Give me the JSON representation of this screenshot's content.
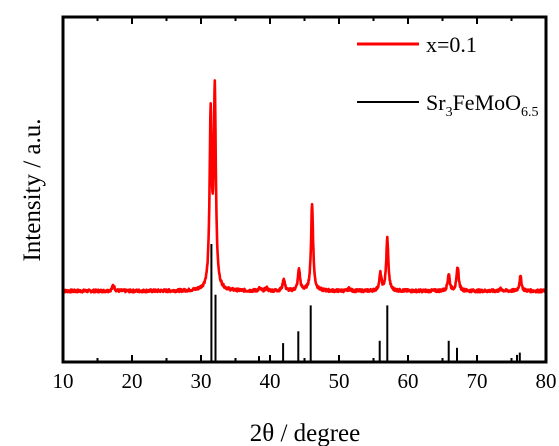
{
  "chart_data": {
    "type": "line",
    "title": "",
    "xlabel": "2θ / degree",
    "ylabel": "Intensity / a.u.",
    "xlim": [
      10,
      80
    ],
    "xticks": [
      10,
      20,
      30,
      40,
      50,
      60,
      70,
      80
    ],
    "xtick_labels": [
      "10",
      "20",
      "30",
      "40",
      "50",
      "60",
      "70",
      "80"
    ],
    "yticks_shown": false,
    "grid": false,
    "legend_placement": "top-right",
    "series": [
      {
        "name": "x=0.1",
        "color": "#ff0000",
        "type": "line",
        "baseline": 0,
        "peaks": [
          {
            "x": 17.3,
            "y": 0.025
          },
          {
            "x": 31.4,
            "y": 0.71
          },
          {
            "x": 32.0,
            "y": 0.82
          },
          {
            "x": 38.5,
            "y": 0.01
          },
          {
            "x": 39.5,
            "y": 0.012
          },
          {
            "x": 42.0,
            "y": 0.05
          },
          {
            "x": 44.2,
            "y": 0.09
          },
          {
            "x": 46.1,
            "y": 0.36
          },
          {
            "x": 51.5,
            "y": 0.01
          },
          {
            "x": 56.0,
            "y": 0.07
          },
          {
            "x": 57.0,
            "y": 0.22
          },
          {
            "x": 65.9,
            "y": 0.07
          },
          {
            "x": 67.2,
            "y": 0.1
          },
          {
            "x": 73.5,
            "y": 0.01
          },
          {
            "x": 76.3,
            "y": 0.06
          }
        ]
      },
      {
        "name": "Sr3FeMoO6.5",
        "name_parts": {
          "a": "Sr",
          "a_sub": "3",
          "b": "FeMoO",
          "b_sub": "6.5"
        },
        "color": "#000000",
        "type": "reference_sticks",
        "sticks": [
          {
            "x": 31.5,
            "y": 1.0
          },
          {
            "x": 32.1,
            "y": 0.57
          },
          {
            "x": 38.4,
            "y": 0.05
          },
          {
            "x": 41.9,
            "y": 0.16
          },
          {
            "x": 44.1,
            "y": 0.26
          },
          {
            "x": 45.9,
            "y": 0.48
          },
          {
            "x": 55.9,
            "y": 0.18
          },
          {
            "x": 57.0,
            "y": 0.48
          },
          {
            "x": 65.9,
            "y": 0.18
          },
          {
            "x": 67.1,
            "y": 0.12
          },
          {
            "x": 75.8,
            "y": 0.06
          },
          {
            "x": 76.2,
            "y": 0.08
          }
        ]
      }
    ]
  }
}
